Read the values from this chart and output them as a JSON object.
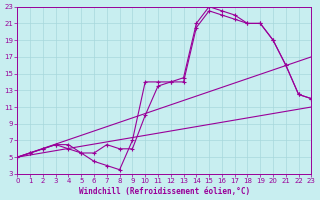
{
  "xlabel": "Windchill (Refroidissement éolien,°C)",
  "xlim": [
    0,
    23
  ],
  "ylim": [
    3,
    23
  ],
  "xticks": [
    0,
    1,
    2,
    3,
    4,
    5,
    6,
    7,
    8,
    9,
    10,
    11,
    12,
    13,
    14,
    15,
    16,
    17,
    18,
    19,
    20,
    21,
    22,
    23
  ],
  "yticks": [
    3,
    5,
    7,
    9,
    11,
    13,
    15,
    17,
    19,
    21,
    23
  ],
  "bg_color": "#c8eef0",
  "grid_color": "#a8d8dc",
  "line_color": "#990099",
  "line1_x": [
    0,
    23
  ],
  "line1_y": [
    5,
    11
  ],
  "line2_x": [
    0,
    23
  ],
  "line2_y": [
    5,
    17
  ],
  "curve1_x": [
    0,
    1,
    2,
    3,
    4,
    5,
    6,
    7,
    8,
    9,
    10,
    11,
    12,
    13,
    14,
    15,
    16,
    17,
    18,
    19,
    20,
    21,
    22,
    23
  ],
  "curve1_y": [
    5,
    5.5,
    6,
    6.5,
    6,
    5.5,
    4.5,
    4.0,
    3.5,
    7,
    14,
    14,
    14,
    14,
    20.5,
    22.5,
    22,
    21.5,
    21,
    21,
    19,
    16,
    12.5,
    12
  ],
  "curve2_x": [
    0,
    1,
    2,
    3,
    4,
    5,
    6,
    7,
    8,
    9,
    10,
    11,
    12,
    13,
    14,
    15,
    16,
    17,
    18,
    19,
    20,
    21,
    22,
    23
  ],
  "curve2_y": [
    5,
    5.5,
    6,
    6.5,
    6.5,
    5.5,
    5.5,
    6.5,
    6.0,
    6.0,
    10,
    13.5,
    14,
    14.5,
    21.0,
    23,
    22.5,
    22,
    21,
    21,
    19,
    16,
    12.5,
    12
  ]
}
